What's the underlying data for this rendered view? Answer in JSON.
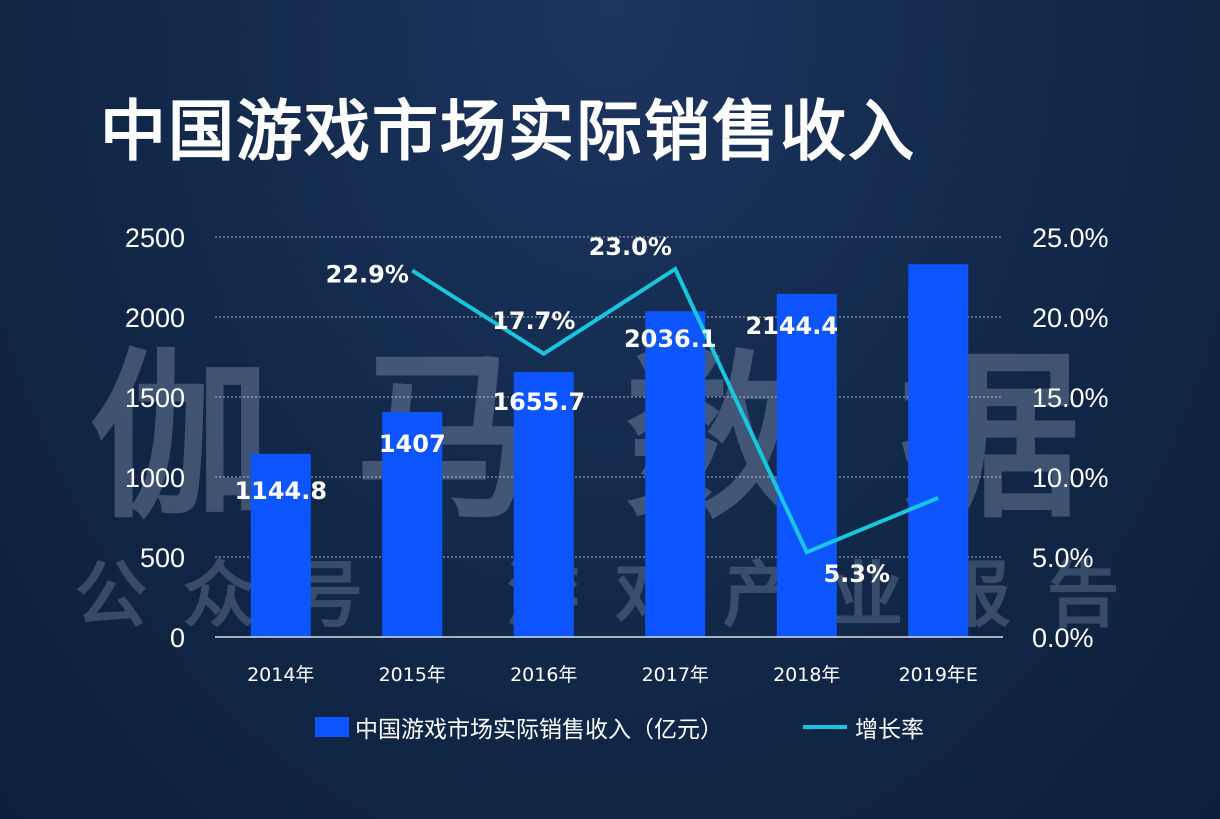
{
  "title": "中国游戏市场实际销售收入",
  "watermark": {
    "main": [
      "伽",
      "马",
      "数",
      "据"
    ],
    "sub": [
      "公",
      "众",
      "号",
      ":",
      "游",
      "戏",
      "产",
      "业",
      "报",
      "告"
    ]
  },
  "legend": {
    "bar_label": "中国游戏市场实际销售收入（亿元）",
    "line_label": "增长率"
  },
  "colors": {
    "bar": "#0d55ff",
    "line": "#19c6e0",
    "grid": "#c8d2e6"
  },
  "chart_data": {
    "type": "bar",
    "categories": [
      "2014年",
      "2015年",
      "2016年",
      "2017年",
      "2018年",
      "2019年E"
    ],
    "series": [
      {
        "name": "中国游戏市场实际销售收入（亿元）",
        "type": "bar",
        "axis": "left",
        "values": [
          1144.8,
          1407,
          1655.7,
          2036.1,
          2144.4,
          2330
        ],
        "labels": [
          "1144.8",
          "1407",
          "1655.7",
          "2036.1",
          "2144.4",
          ""
        ]
      },
      {
        "name": "增长率",
        "type": "line",
        "axis": "right",
        "values": [
          null,
          22.9,
          17.7,
          23.0,
          5.3,
          8.7
        ],
        "labels": [
          "",
          "22.9%",
          "17.7%",
          "23.0%",
          "5.3%",
          ""
        ]
      }
    ],
    "y_left": {
      "ylim": [
        0,
        2500
      ],
      "ticks": [
        "0",
        "500",
        "1000",
        "1500",
        "2000",
        "2500"
      ]
    },
    "y_right": {
      "ylim": [
        0,
        25
      ],
      "ticks": [
        "0.0%",
        "5.0%",
        "10.0%",
        "15.0%",
        "20.0%",
        "25.0%"
      ]
    },
    "grid": "horizontal dotted",
    "legend_position": "bottom"
  }
}
